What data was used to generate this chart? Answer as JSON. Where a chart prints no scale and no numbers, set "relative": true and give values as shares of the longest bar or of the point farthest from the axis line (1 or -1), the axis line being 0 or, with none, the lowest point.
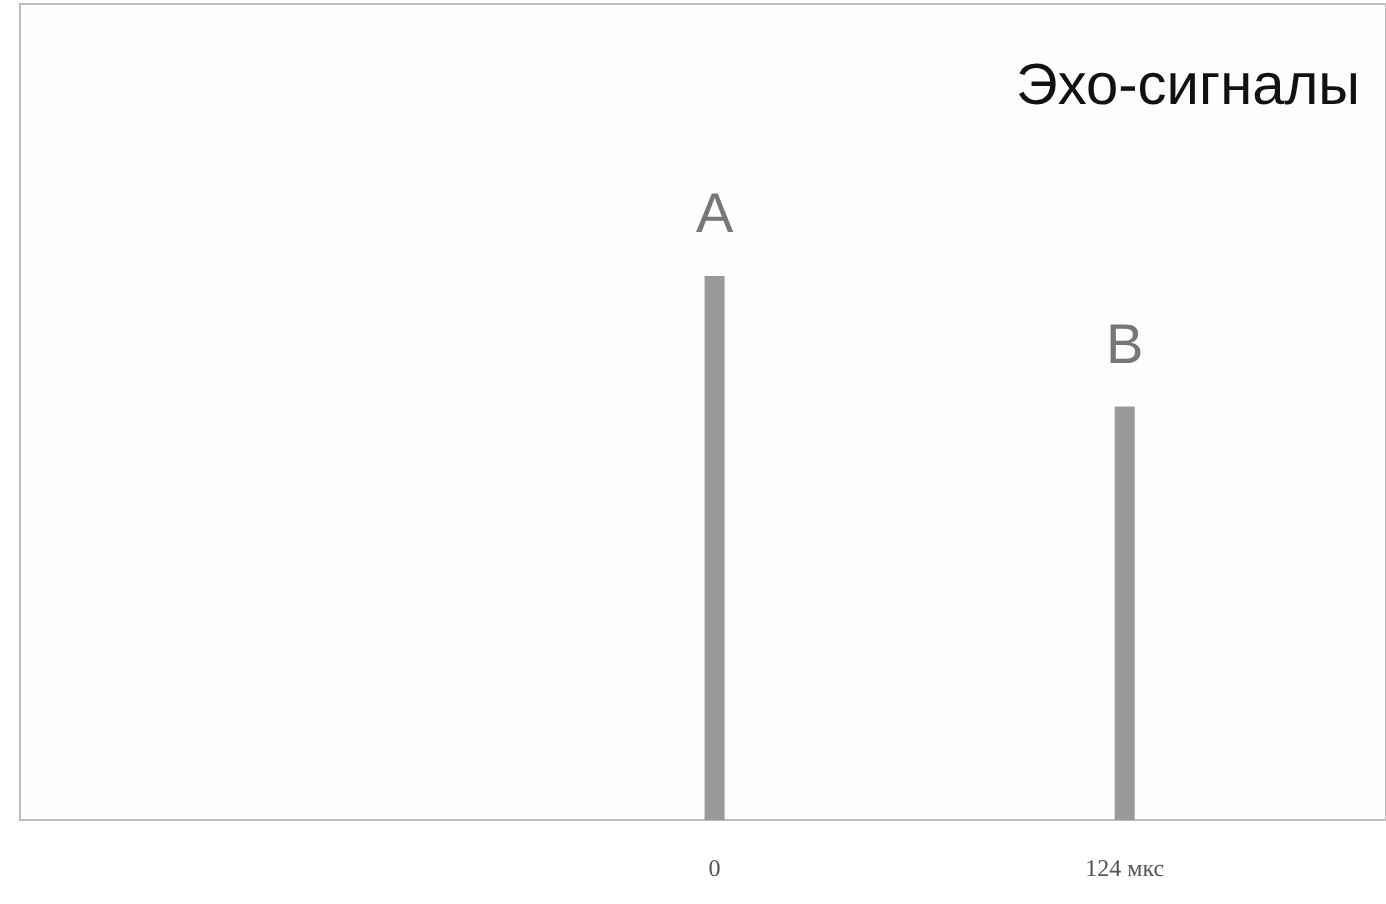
{
  "chart_data": {
    "type": "bar",
    "title": "Эхо-сигналы",
    "relative": true,
    "x": [
      0,
      124
    ],
    "values": [
      1,
      0.76
    ],
    "color": "#999999",
    "xlim": [
      -210,
      203
    ],
    "xticks": [
      0,
      {
        "value": 124,
        "label": "124 мкс"
      }
    ],
    "annotations": [
      "A",
      "B"
    ]
  }
}
